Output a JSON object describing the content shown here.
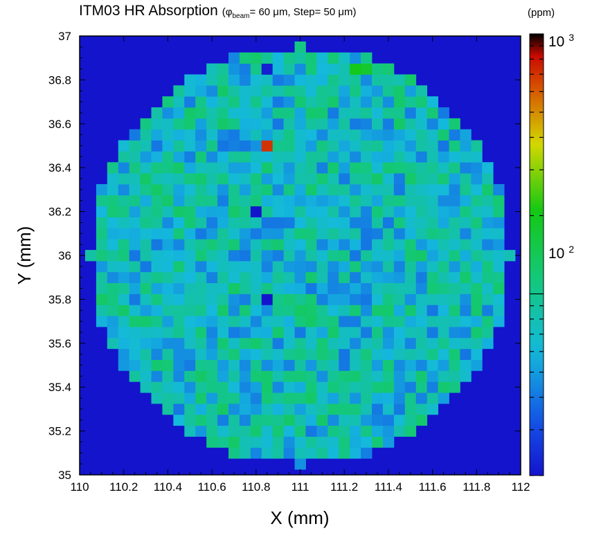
{
  "title": {
    "main": "ITM03 HR Absorption",
    "sub_pre": "(φ",
    "sub_subscript": "beam",
    "sub_post": "= 60 μm, Step= 50 μm)"
  },
  "colorbar_units": "(ppm)",
  "chart_data": {
    "type": "heatmap",
    "xlabel": "X (mm)",
    "ylabel": "Y (mm)",
    "xlim": [
      110,
      112
    ],
    "ylim": [
      35,
      37
    ],
    "xticks": [
      "110",
      "110.2",
      "110.4",
      "110.6",
      "110.8",
      "111",
      "111.2",
      "111.4",
      "111.6",
      "111.8",
      "112"
    ],
    "yticks": [
      "35",
      "35.2",
      "35.4",
      "35.6",
      "35.8",
      "36",
      "36.2",
      "36.4",
      "36.6",
      "36.8",
      "37"
    ],
    "grid": false,
    "step_mm": 0.05,
    "map_center_mm": [
      111.0,
      36.0
    ],
    "map_radius_mm": 0.95,
    "colorscale": "log",
    "color_range_ppm": [
      20,
      1000
    ],
    "colorbar_ticks": [
      {
        "base": "10",
        "exp": "3",
        "value": 1000
      },
      {
        "base": "10",
        "exp": "2",
        "value": 100
      }
    ],
    "background_color": "#1414cc",
    "typical_range_ppm": [
      40,
      130
    ],
    "hotspots": [
      {
        "x": 110.85,
        "y": 36.5,
        "value_ppm": 700
      },
      {
        "x": 111.25,
        "y": 36.85,
        "value_ppm": 200
      },
      {
        "x": 111.3,
        "y": 36.85,
        "value_ppm": 180
      },
      {
        "x": 110.75,
        "y": 36.95,
        "value_ppm": 170
      }
    ],
    "lowspots": [
      {
        "x": 110.8,
        "y": 36.2,
        "value_ppm": 20
      },
      {
        "x": 110.85,
        "y": 35.8,
        "value_ppm": 20
      },
      {
        "x": 110.85,
        "y": 36.85,
        "value_ppm": 22
      }
    ]
  }
}
